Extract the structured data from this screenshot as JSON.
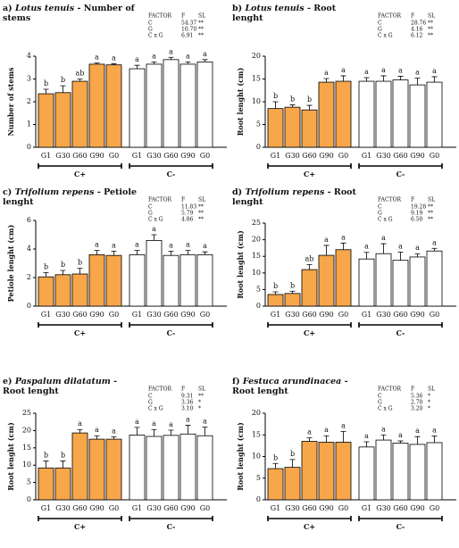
{
  "chart_data": [
    {
      "type": "bar",
      "panel": "a)",
      "species": "Lotus tenuis",
      "title": "- Number of stems",
      "ylabel": "Number of stems",
      "ylim": [
        0,
        4
      ],
      "yticks": [
        0,
        1,
        2,
        3,
        4
      ],
      "stats": {
        "header": [
          "FACTOR",
          "F",
          "SL"
        ],
        "rows": [
          [
            "C",
            "54.37",
            "**"
          ],
          [
            "G",
            "10.70",
            "**"
          ],
          [
            "C x G",
            "6.91",
            "**"
          ]
        ]
      },
      "series": [
        {
          "name": "C+",
          "color": "#f7a64a",
          "categories": [
            "G1",
            "G30",
            "G60",
            "G90",
            "G0"
          ],
          "values": [
            2.35,
            2.4,
            2.9,
            3.65,
            3.62
          ],
          "errors": [
            0.2,
            0.3,
            0.1,
            0.05,
            0.05
          ],
          "letters": [
            "b",
            "b",
            "ab",
            "a",
            "a"
          ]
        },
        {
          "name": "C-",
          "color": "#ffffff",
          "categories": [
            "G1",
            "G30",
            "G60",
            "G90",
            "G0"
          ],
          "values": [
            3.45,
            3.65,
            3.85,
            3.65,
            3.75
          ],
          "errors": [
            0.15,
            0.1,
            0.1,
            0.1,
            0.1
          ],
          "letters": [
            "a",
            "a",
            "a",
            "a",
            "a"
          ]
        }
      ]
    },
    {
      "type": "bar",
      "panel": "b)",
      "species": "Lotus tenuis",
      "title": "- Root lenght",
      "ylabel": "Root lenght (cm)",
      "ylim": [
        0,
        20
      ],
      "yticks": [
        0,
        5,
        10,
        15,
        20
      ],
      "stats": {
        "header": [
          "FACTOR",
          "F",
          "SL"
        ],
        "rows": [
          [
            "C",
            "28.76",
            "**"
          ],
          [
            "G",
            "4.16",
            "**"
          ],
          [
            "C x G",
            "6.12",
            "**"
          ]
        ]
      },
      "series": [
        {
          "name": "C+",
          "color": "#f7a64a",
          "categories": [
            "G1",
            "G30",
            "G60",
            "G90",
            "G0"
          ],
          "values": [
            8.5,
            8.8,
            8.2,
            14.3,
            14.5
          ],
          "errors": [
            1.5,
            0.5,
            1,
            0.8,
            1.2
          ],
          "letters": [
            "b",
            "b",
            "b",
            "a",
            "a"
          ]
        },
        {
          "name": "C-",
          "color": "#ffffff",
          "categories": [
            "G1",
            "G30",
            "G60",
            "G90",
            "G0"
          ],
          "values": [
            14.5,
            14.5,
            14.8,
            13.7,
            14.3
          ],
          "errors": [
            0.8,
            1.2,
            0.8,
            1.5,
            1.2
          ],
          "letters": [
            "a",
            "a",
            "a",
            "a",
            "a"
          ]
        }
      ]
    },
    {
      "type": "bar",
      "panel": "c)",
      "species": "Trifolium repens",
      "title": "- Petiole lenght",
      "ylabel": "Petiole lenght (cm)",
      "ylim": [
        0,
        6
      ],
      "yticks": [
        0,
        2,
        4,
        6
      ],
      "stats": {
        "header": [
          "FACTOR",
          "F",
          "SL"
        ],
        "rows": [
          [
            "C",
            "11.83",
            "**"
          ],
          [
            "G",
            "5.79",
            "**"
          ],
          [
            "C x G",
            "4.86",
            "**"
          ]
        ]
      },
      "series": [
        {
          "name": "C+",
          "color": "#f7a64a",
          "categories": [
            "G1",
            "G30",
            "G60",
            "G90",
            "G0"
          ],
          "values": [
            2.05,
            2.2,
            2.25,
            3.6,
            3.55
          ],
          "errors": [
            0.3,
            0.3,
            0.4,
            0.3,
            0.3
          ],
          "letters": [
            "b",
            "b",
            "b",
            "a",
            "a"
          ]
        },
        {
          "name": "C-",
          "color": "#ffffff",
          "categories": [
            "G1",
            "G30",
            "G60",
            "G90",
            "G0"
          ],
          "values": [
            3.6,
            4.6,
            3.55,
            3.6,
            3.6
          ],
          "errors": [
            0.3,
            0.4,
            0.3,
            0.3,
            0.2
          ],
          "letters": [
            "a",
            "a",
            "a",
            "a",
            "a"
          ]
        }
      ]
    },
    {
      "type": "bar",
      "panel": "d)",
      "species": "Trifolium repens",
      "title": "- Root lenght",
      "ylabel": "Root lenght (cm)",
      "ylim": [
        0,
        25
      ],
      "yticks": [
        0,
        5,
        10,
        15,
        20,
        25
      ],
      "stats": {
        "header": [
          "FACTOR",
          "F",
          "SL"
        ],
        "rows": [
          [
            "C",
            "19.28",
            "**"
          ],
          [
            "G",
            "9.19",
            "**"
          ],
          [
            "C x G",
            "6.50",
            "**"
          ]
        ]
      },
      "series": [
        {
          "name": "C+",
          "color": "#f7a64a",
          "categories": [
            "G1",
            "G30",
            "G60",
            "G90",
            "G0"
          ],
          "values": [
            3.5,
            3.8,
            11,
            15.3,
            17
          ],
          "errors": [
            0.8,
            0.7,
            1.5,
            3,
            2
          ],
          "letters": [
            "b",
            "b",
            "ab",
            "a",
            "a"
          ]
        },
        {
          "name": "C-",
          "color": "#ffffff",
          "categories": [
            "G1",
            "G30",
            "G60",
            "G90",
            "G0"
          ],
          "values": [
            14.2,
            15.8,
            13.8,
            14.8,
            16.6
          ],
          "errors": [
            2,
            3,
            2.5,
            1,
            0.8
          ],
          "letters": [
            "a",
            "a",
            "a",
            "a",
            "a"
          ]
        }
      ]
    },
    {
      "type": "bar",
      "panel": "e)",
      "species": "Paspalum dilatatum",
      "title": "- Root lenght",
      "ylabel": "Root lenght (cm)",
      "ylim": [
        0,
        25
      ],
      "yticks": [
        0,
        5,
        10,
        15,
        20,
        25
      ],
      "stats": {
        "header": [
          "FACTOR",
          "F",
          "SL"
        ],
        "rows": [
          [
            "C",
            "9.31",
            "**"
          ],
          [
            "G",
            "3.36",
            "*"
          ],
          [
            "C x G",
            "3.10",
            "*"
          ]
        ]
      },
      "series": [
        {
          "name": "C+",
          "color": "#f7a64a",
          "categories": [
            "G1",
            "G30",
            "G60",
            "G90",
            "G0"
          ],
          "values": [
            9.2,
            9.2,
            19.3,
            17.5,
            17.5
          ],
          "errors": [
            2,
            2,
            1,
            1,
            0.7
          ],
          "letters": [
            "b",
            "b",
            "a",
            "a",
            "a"
          ]
        },
        {
          "name": "C-",
          "color": "#ffffff",
          "categories": [
            "G1",
            "G30",
            "G60",
            "G90",
            "G0"
          ],
          "values": [
            18.7,
            18.3,
            18.6,
            19,
            18.5
          ],
          "errors": [
            2.2,
            2,
            1.5,
            2.5,
            2.5
          ],
          "letters": [
            "a",
            "a",
            "a",
            "a",
            "a"
          ]
        }
      ]
    },
    {
      "type": "bar",
      "panel": "f)",
      "species": "Festuca arundinacea",
      "title": "- Root lenght",
      "ylabel": "Root lenght (cm)",
      "ylim": [
        0,
        20
      ],
      "yticks": [
        0,
        5,
        10,
        15,
        20
      ],
      "stats": {
        "header": [
          "FACTOR",
          "F",
          "SL"
        ],
        "rows": [
          [
            "C",
            "5.36",
            "*"
          ],
          [
            "G",
            "2.70",
            "*"
          ],
          [
            "C x G",
            "3.20",
            "*"
          ]
        ]
      },
      "series": [
        {
          "name": "C+",
          "color": "#f7a64a",
          "categories": [
            "G1",
            "G30",
            "G60",
            "G90",
            "G0"
          ],
          "values": [
            7.2,
            7.5,
            13.5,
            13.3,
            13.3
          ],
          "errors": [
            1.2,
            1.8,
            0.8,
            1.5,
            2.5
          ],
          "letters": [
            "b",
            "b",
            "a",
            "a",
            "a"
          ]
        },
        {
          "name": "C-",
          "color": "#ffffff",
          "categories": [
            "G1",
            "G30",
            "G60",
            "G90",
            "G0"
          ],
          "values": [
            12.2,
            13.8,
            13.1,
            12.8,
            13.2
          ],
          "errors": [
            1.2,
            1.2,
            0.5,
            1.8,
            1.5
          ],
          "letters": [
            "a",
            "a",
            "a",
            "a",
            "a"
          ]
        }
      ]
    }
  ]
}
